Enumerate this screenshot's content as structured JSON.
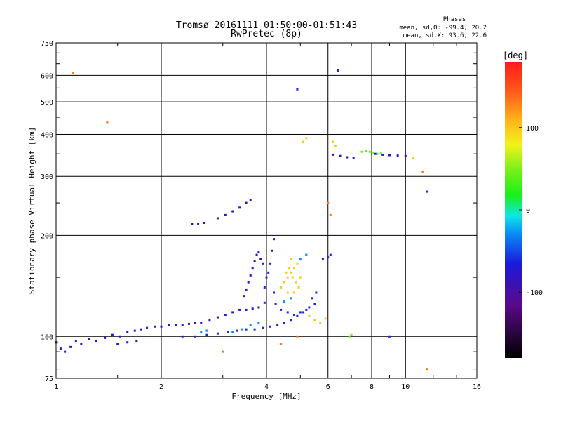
{
  "chart_data": {
    "type": "scatter",
    "title": "Tromsø 20161111 01:50:00-01:51:43",
    "subtitle": "RwPretec (8p)",
    "stats": {
      "heading": "Phases",
      "line_o": "mean, sd,O: -99.4, 20.2",
      "line_x": "mean, sd,X:  93.6, 22.6"
    },
    "xlabel": "Frequency [MHz]",
    "ylabel": "Stationary phase Virtual Height [km]",
    "x_scale": "log",
    "y_scale": "log",
    "xlim": [
      1,
      16
    ],
    "ylim": [
      75,
      750
    ],
    "x_ticks": [
      1,
      2,
      4,
      6,
      8,
      10,
      16
    ],
    "y_ticks": [
      75,
      100,
      200,
      300,
      400,
      500,
      600,
      750
    ],
    "grid": true,
    "colorbar": {
      "label": "[deg]",
      "range": [
        -180,
        180
      ],
      "ticks": [
        100,
        0,
        -100
      ]
    },
    "series": [
      {
        "phase_deg": -110,
        "points": [
          [
            1.0,
            96
          ],
          [
            1.03,
            92
          ],
          [
            1.06,
            90
          ],
          [
            1.1,
            93
          ],
          [
            1.14,
            97
          ],
          [
            1.18,
            95
          ],
          [
            1.24,
            98
          ],
          [
            1.3,
            97
          ],
          [
            1.38,
            99
          ],
          [
            1.45,
            101
          ],
          [
            1.52,
            100
          ],
          [
            1.6,
            103
          ],
          [
            1.68,
            104
          ],
          [
            1.75,
            105
          ],
          [
            1.82,
            106
          ],
          [
            1.92,
            107
          ],
          [
            2.0,
            107
          ],
          [
            2.1,
            108
          ],
          [
            2.2,
            108
          ],
          [
            2.3,
            108
          ],
          [
            2.4,
            109
          ],
          [
            2.5,
            110
          ],
          [
            2.6,
            110
          ],
          [
            2.75,
            112
          ],
          [
            2.9,
            114
          ],
          [
            3.05,
            116
          ],
          [
            3.2,
            118
          ],
          [
            3.35,
            120
          ],
          [
            3.5,
            120
          ],
          [
            3.65,
            121
          ],
          [
            3.8,
            122
          ],
          [
            3.95,
            126
          ],
          [
            2.45,
            216
          ],
          [
            2.55,
            217
          ],
          [
            2.65,
            218
          ],
          [
            2.9,
            225
          ],
          [
            3.05,
            230
          ],
          [
            3.2,
            236
          ],
          [
            3.35,
            242
          ],
          [
            3.5,
            250
          ],
          [
            3.6,
            255
          ],
          [
            3.45,
            132
          ],
          [
            3.5,
            138
          ],
          [
            3.55,
            145
          ],
          [
            3.6,
            152
          ],
          [
            3.65,
            160
          ],
          [
            3.7,
            168
          ],
          [
            3.75,
            175
          ],
          [
            3.8,
            178
          ],
          [
            3.85,
            170
          ],
          [
            3.9,
            165
          ],
          [
            6.2,
            348
          ],
          [
            6.5,
            345
          ],
          [
            6.8,
            342
          ],
          [
            7.1,
            340
          ],
          [
            8.2,
            350
          ],
          [
            8.6,
            348
          ],
          [
            9.0,
            347
          ],
          [
            9.5,
            346
          ],
          [
            10.0,
            345
          ],
          [
            1.5,
            95
          ],
          [
            1.6,
            96
          ],
          [
            1.7,
            97
          ]
        ]
      },
      {
        "phase_deg": -95,
        "points": [
          [
            2.3,
            100
          ],
          [
            2.5,
            100
          ],
          [
            2.7,
            101
          ],
          [
            2.9,
            102
          ],
          [
            3.1,
            103
          ],
          [
            3.3,
            104
          ],
          [
            3.5,
            105
          ],
          [
            3.7,
            105
          ],
          [
            3.9,
            106
          ],
          [
            4.1,
            107
          ],
          [
            4.3,
            108
          ],
          [
            4.5,
            110
          ],
          [
            4.7,
            112
          ],
          [
            4.9,
            115
          ],
          [
            5.1,
            118
          ],
          [
            5.3,
            122
          ],
          [
            5.5,
            125
          ],
          [
            4.0,
            150
          ],
          [
            4.1,
            165
          ],
          [
            4.15,
            180
          ],
          [
            4.2,
            195
          ],
          [
            3.95,
            140
          ],
          [
            4.05,
            155
          ],
          [
            4.2,
            135
          ],
          [
            4.25,
            125
          ],
          [
            4.4,
            120
          ],
          [
            4.6,
            118
          ],
          [
            4.8,
            116
          ],
          [
            5.0,
            118
          ],
          [
            5.2,
            120
          ],
          [
            5.4,
            130
          ],
          [
            5.55,
            135
          ],
          [
            5.8,
            170
          ],
          [
            6.0,
            172
          ],
          [
            6.1,
            175
          ],
          [
            4.9,
            545
          ],
          [
            6.4,
            620
          ],
          [
            11.5,
            270
          ],
          [
            9.0,
            100
          ]
        ]
      },
      {
        "phase_deg": -60,
        "points": [
          [
            3.2,
            103
          ],
          [
            3.4,
            105
          ],
          [
            3.6,
            108
          ],
          [
            3.8,
            110
          ],
          [
            2.6,
            103
          ],
          [
            2.7,
            104
          ],
          [
            4.5,
            127
          ],
          [
            4.7,
            130
          ],
          [
            5.0,
            170
          ],
          [
            5.2,
            175
          ]
        ]
      },
      {
        "phase_deg": 120,
        "points": [
          [
            4.4,
            140
          ],
          [
            4.5,
            145
          ],
          [
            4.6,
            150
          ],
          [
            4.7,
            155
          ],
          [
            4.8,
            160
          ],
          [
            4.9,
            165
          ],
          [
            4.55,
            155
          ],
          [
            4.65,
            160
          ],
          [
            4.75,
            150
          ],
          [
            4.85,
            145
          ],
          [
            4.95,
            140
          ],
          [
            4.6,
            135
          ],
          [
            4.8,
            135
          ],
          [
            5.0,
            150
          ],
          [
            4.7,
            170
          ],
          [
            5.3,
            115
          ],
          [
            5.5,
            112
          ],
          [
            5.7,
            110
          ],
          [
            5.9,
            113
          ],
          [
            6.2,
            380
          ],
          [
            6.3,
            370
          ],
          [
            5.1,
            380
          ],
          [
            5.2,
            390
          ],
          [
            10.5,
            340
          ]
        ]
      },
      {
        "phase_deg": 150,
        "points": [
          [
            1.12,
            610
          ],
          [
            1.4,
            435
          ],
          [
            4.4,
            95
          ],
          [
            4.9,
            100
          ],
          [
            6.0,
            250
          ],
          [
            6.1,
            230
          ],
          [
            11.2,
            310
          ],
          [
            11.5,
            80
          ],
          [
            3.0,
            90
          ]
        ]
      },
      {
        "phase_deg": 40,
        "points": [
          [
            7.5,
            355
          ],
          [
            7.7,
            357
          ],
          [
            7.9,
            355
          ],
          [
            8.1,
            352
          ],
          [
            8.3,
            350
          ],
          [
            8.5,
            351
          ],
          [
            6.9,
            100
          ],
          [
            7.0,
            101
          ]
        ]
      }
    ]
  }
}
